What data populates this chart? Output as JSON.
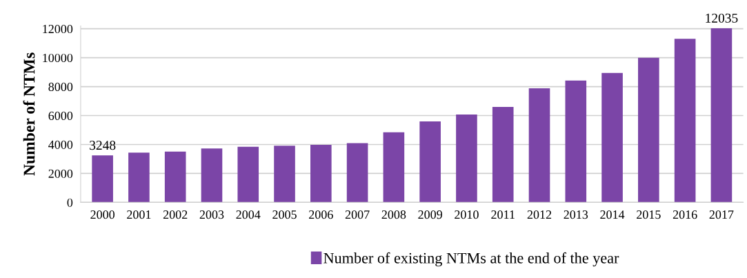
{
  "chart_data": {
    "type": "bar",
    "ylabel": "Number of NTMs",
    "categories": [
      "2000",
      "2001",
      "2002",
      "2003",
      "2004",
      "2005",
      "2006",
      "2007",
      "2008",
      "2009",
      "2010",
      "2011",
      "2012",
      "2013",
      "2014",
      "2015",
      "2016",
      "2017"
    ],
    "series": [
      {
        "name": "Number of existing NTMs at the end of the year",
        "color": "#7b45a7",
        "values": [
          3248,
          3440,
          3510,
          3730,
          3850,
          3920,
          3970,
          4090,
          4840,
          5600,
          6070,
          6600,
          7890,
          8420,
          8950,
          10000,
          11300,
          12035
        ],
        "value_labels": [
          "3248",
          null,
          null,
          null,
          null,
          null,
          null,
          null,
          null,
          null,
          null,
          null,
          null,
          null,
          null,
          null,
          null,
          "12035"
        ]
      }
    ],
    "ylim": [
      0,
      12200
    ],
    "yticks": [
      0,
      2000,
      4000,
      6000,
      8000,
      10000,
      12000
    ],
    "grid": "y",
    "legend": "bottom"
  }
}
